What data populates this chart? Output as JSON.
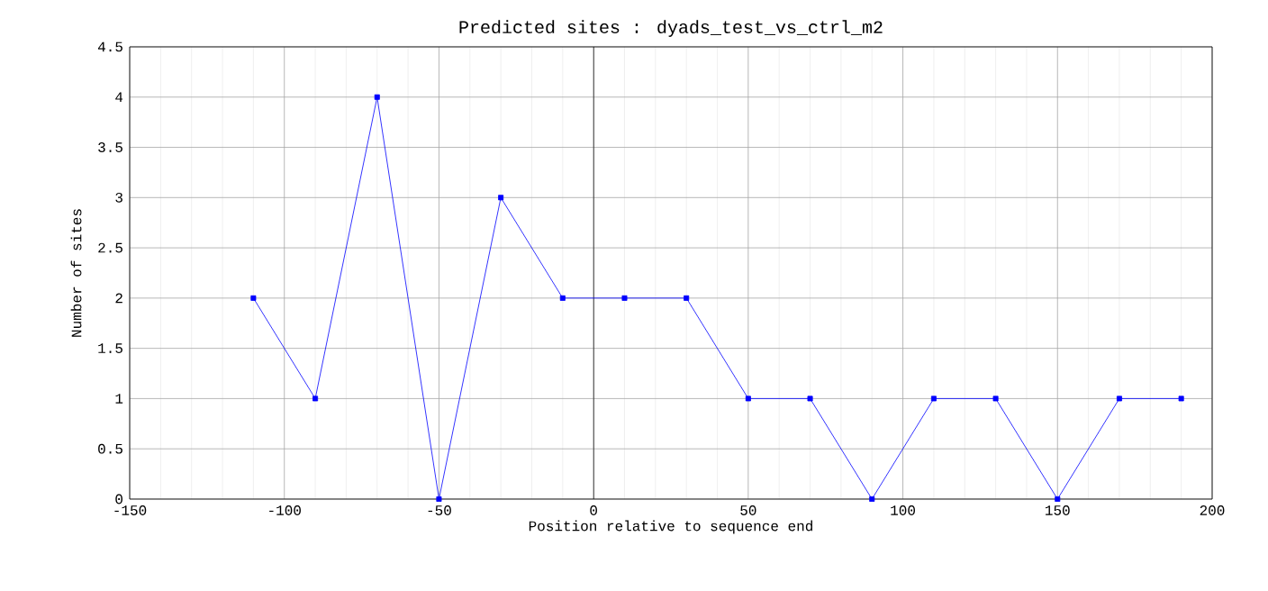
{
  "chart_data": {
    "type": "line",
    "title": "Predicted sites : dyads_test_vs_ctrl_m2",
    "xlabel": "Position relative to sequence end",
    "ylabel": "Number of sites",
    "x": [
      -110,
      -90,
      -70,
      -50,
      -30,
      -10,
      10,
      30,
      50,
      70,
      90,
      110,
      130,
      150,
      170,
      190
    ],
    "series": [
      {
        "color": "#0000ff",
        "values": [
          2,
          1,
          4,
          0,
          3,
          2,
          2,
          2,
          1,
          1,
          0,
          1,
          1,
          0,
          1,
          1
        ]
      }
    ],
    "xlim": [
      -150,
      200
    ],
    "xticks": [
      -150,
      -100,
      -50,
      0,
      50,
      100,
      150,
      200
    ],
    "ylim": [
      0,
      4.5
    ],
    "yticks": [
      0,
      0.5,
      1,
      1.5,
      2,
      2.5,
      3,
      3.5,
      4,
      4.5
    ],
    "ref_lines": [
      {
        "axis": "x",
        "value": 0,
        "color": "#000000"
      }
    ],
    "grid": true,
    "marker": "square",
    "line_style": "solid"
  }
}
